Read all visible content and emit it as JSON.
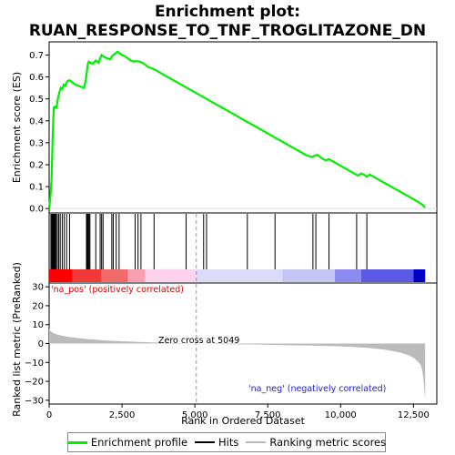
{
  "chart_data": {
    "type": "line",
    "title_line1": "Enrichment plot:",
    "title_line2": "RUAN_RESPONSE_TO_TNF_TROGLITAZONE_DN",
    "es_panel": {
      "ylabel": "Enrichment score (ES)",
      "ylim": [
        -0.02,
        0.76
      ],
      "yticks": [
        0.0,
        0.1,
        0.2,
        0.3,
        0.4,
        0.5,
        0.6,
        0.7
      ],
      "ytick_labels": [
        "0.0",
        "0.1",
        "0.2",
        "0.3",
        "0.4",
        "0.5",
        "0.6",
        "0.7"
      ],
      "series": {
        "name": "Enrichment profile",
        "color": "#00ee00",
        "x": [
          0,
          40,
          80,
          100,
          120,
          140,
          160,
          200,
          250,
          300,
          350,
          400,
          450,
          500,
          560,
          620,
          700,
          800,
          900,
          1000,
          1100,
          1200,
          1250,
          1280,
          1300,
          1330,
          1360,
          1400,
          1500,
          1600,
          1650,
          1700,
          1750,
          1800,
          1850,
          1900,
          2000,
          2100,
          2150,
          2200,
          2250,
          2300,
          2350,
          2400,
          2500,
          2600,
          2700,
          2800,
          2900,
          3000,
          3100,
          3200,
          3300,
          3400,
          3600,
          3800,
          4000,
          4200,
          4400,
          4600,
          4800,
          5000,
          5200,
          5400,
          5600,
          5800,
          6000,
          6200,
          6400,
          6600,
          6800,
          7000,
          7200,
          7400,
          7600,
          7800,
          8000,
          8200,
          8400,
          8600,
          8800,
          9000,
          9100,
          9200,
          9300,
          9400,
          9500,
          9600,
          9800,
          10000,
          10200,
          10400,
          10600,
          10700,
          10800,
          10900,
          11000,
          11200,
          11400,
          11600,
          11800,
          12000,
          12200,
          12400,
          12600,
          12800,
          12900
        ],
        "y": [
          0.0,
          0.05,
          0.13,
          0.22,
          0.32,
          0.4,
          0.46,
          0.465,
          0.46,
          0.5,
          0.53,
          0.55,
          0.545,
          0.565,
          0.56,
          0.58,
          0.585,
          0.575,
          0.565,
          0.56,
          0.555,
          0.55,
          0.58,
          0.61,
          0.63,
          0.66,
          0.67,
          0.665,
          0.66,
          0.675,
          0.67,
          0.665,
          0.685,
          0.7,
          0.695,
          0.69,
          0.685,
          0.68,
          0.695,
          0.7,
          0.705,
          0.71,
          0.715,
          0.71,
          0.7,
          0.695,
          0.685,
          0.675,
          0.67,
          0.672,
          0.67,
          0.665,
          0.655,
          0.645,
          0.635,
          0.62,
          0.605,
          0.59,
          0.575,
          0.56,
          0.545,
          0.53,
          0.515,
          0.5,
          0.485,
          0.47,
          0.455,
          0.44,
          0.425,
          0.41,
          0.395,
          0.38,
          0.365,
          0.35,
          0.335,
          0.32,
          0.305,
          0.29,
          0.275,
          0.26,
          0.245,
          0.235,
          0.24,
          0.245,
          0.235,
          0.225,
          0.22,
          0.225,
          0.21,
          0.195,
          0.18,
          0.165,
          0.15,
          0.16,
          0.155,
          0.145,
          0.155,
          0.14,
          0.125,
          0.11,
          0.095,
          0.08,
          0.065,
          0.05,
          0.035,
          0.018,
          0.005
        ]
      }
    },
    "hits_panel": {
      "legend_name": "Hits",
      "hit_positions": [
        60,
        90,
        110,
        130,
        150,
        170,
        190,
        210,
        240,
        280,
        330,
        380,
        450,
        520,
        600,
        700,
        1280,
        1310,
        1340,
        1370,
        1400,
        1600,
        1750,
        1800,
        1850,
        2150,
        2200,
        2300,
        2400,
        2950,
        3050,
        3150,
        3600,
        4700,
        5300,
        5400,
        6800,
        7750,
        9050,
        9150,
        9600,
        10550,
        10900
      ],
      "band_colors": [
        {
          "from": 0,
          "to": 800,
          "color": "#ff0000"
        },
        {
          "from": 800,
          "to": 1800,
          "color": "#f03a3a"
        },
        {
          "from": 1800,
          "to": 2700,
          "color": "#f06a6a"
        },
        {
          "from": 2700,
          "to": 3300,
          "color": "#f7a0b4"
        },
        {
          "from": 3300,
          "to": 5049,
          "color": "#fcd2ec"
        },
        {
          "from": 5049,
          "to": 8000,
          "color": "#dcdcf8"
        },
        {
          "from": 8000,
          "to": 9800,
          "color": "#c6c6f5"
        },
        {
          "from": 9800,
          "to": 10700,
          "color": "#8c8cf0"
        },
        {
          "from": 10700,
          "to": 12500,
          "color": "#5a5ae6"
        },
        {
          "from": 12500,
          "to": 12900,
          "color": "#0000c8"
        }
      ]
    },
    "metric_panel": {
      "ylabel": "Ranked list metric (PreRanked)",
      "xlabel": "Rank in Ordered Dataset",
      "legend_name": "Ranking metric scores",
      "ylim": [
        -32,
        32
      ],
      "yticks": [
        -30,
        -20,
        -10,
        0,
        10,
        20,
        30
      ],
      "ytick_labels": [
        "−30",
        "−20",
        "−10",
        "0",
        "10",
        "20",
        "30"
      ],
      "x": [
        0,
        50,
        150,
        300,
        500,
        800,
        1200,
        1600,
        2000,
        2500,
        3000,
        3500,
        4000,
        4500,
        5049,
        6000,
        7000,
        8000,
        9000,
        10000,
        10500,
        11000,
        11500,
        12000,
        12300,
        12500,
        12650,
        12750,
        12800,
        12850,
        12900
      ],
      "y": [
        8,
        6.5,
        5.5,
        4.6,
        4.0,
        3.2,
        2.5,
        2.0,
        1.6,
        1.2,
        0.9,
        0.6,
        0.4,
        0.2,
        0.0,
        -0.3,
        -0.5,
        -0.8,
        -1.1,
        -1.5,
        -1.9,
        -2.4,
        -3.2,
        -4.6,
        -6.0,
        -7.5,
        -9.5,
        -11.5,
        -14,
        -20,
        -30
      ],
      "pos_label": "'na_pos' (positively correlated)",
      "neg_label": "'na_neg' (negatively correlated)",
      "zero_cross_label": "Zero cross at 5049",
      "zero_cross": 5049
    },
    "xaxis": {
      "xlim": [
        0,
        13300
      ],
      "xticks": [
        0,
        2500,
        5000,
        7500,
        10000,
        12500
      ],
      "xtick_labels": [
        "0",
        "2,500",
        "5,000",
        "7,500",
        "10,000",
        "12,500"
      ]
    },
    "legend": {
      "enrichment_profile": "Enrichment profile",
      "hits": "Hits",
      "ranking_metric_scores": "Ranking metric scores",
      "enrichment_color": "#00ee00",
      "hits_color": "#000000",
      "metric_color": "#bbbbbb"
    }
  }
}
